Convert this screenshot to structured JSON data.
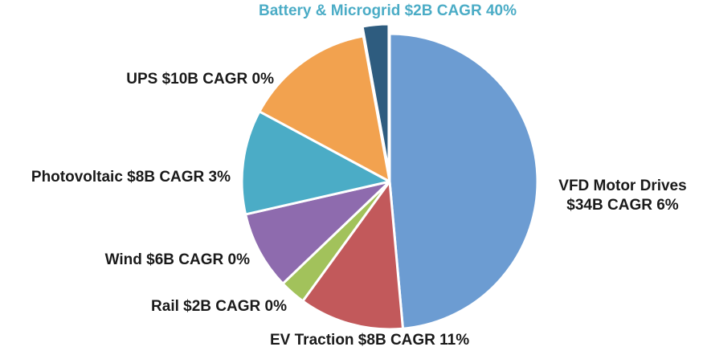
{
  "chart_data": {
    "type": "pie",
    "title": "",
    "units": "$B",
    "total_value": 70,
    "direction": "clockwise",
    "start_angle_deg": 0,
    "slice_border_color": "#FFFFFF",
    "slice_border_width": 3,
    "legend_position": "callout-labels",
    "segments": [
      {
        "id": "vfd-motor-drives",
        "name": "VFD Motor Drives",
        "value": 34,
        "cagr_pct": 6,
        "color": "#6C9CD2",
        "label": "VFD Motor Drives\n$34B CAGR 6%",
        "label_color": "#1A1A1A",
        "exploded": false
      },
      {
        "id": "ev-traction",
        "name": "EV Traction",
        "value": 8,
        "cagr_pct": 11,
        "color": "#C2595B",
        "label": "EV Traction $8B CAGR 11%",
        "label_color": "#1A1A1A",
        "exploded": false
      },
      {
        "id": "rail",
        "name": "Rail",
        "value": 2,
        "cagr_pct": 0,
        "color": "#A2C25B",
        "label": "Rail $2B CAGR 0%",
        "label_color": "#1A1A1A",
        "exploded": false
      },
      {
        "id": "wind",
        "name": "Wind",
        "value": 6,
        "cagr_pct": 0,
        "color": "#8E6BAE",
        "label": "Wind $6B CAGR 0%",
        "label_color": "#1A1A1A",
        "exploded": false
      },
      {
        "id": "photovoltaic",
        "name": "Photovoltaic",
        "value": 8,
        "cagr_pct": 3,
        "color": "#4BACC6",
        "label": "Photovoltaic $8B CAGR 3%",
        "label_color": "#1A1A1A",
        "exploded": false
      },
      {
        "id": "ups",
        "name": "UPS",
        "value": 10,
        "cagr_pct": 0,
        "color": "#F2A24F",
        "label": "UPS $10B CAGR 0%",
        "label_color": "#1A1A1A",
        "exploded": false
      },
      {
        "id": "battery-microgrid",
        "name": "Battery & Microgrid",
        "value": 2,
        "cagr_pct": 40,
        "color": "#2E5C7F",
        "label": "Battery & Microgrid $2B CAGR 40%",
        "label_color": "#4BACC6",
        "exploded": true
      }
    ]
  }
}
